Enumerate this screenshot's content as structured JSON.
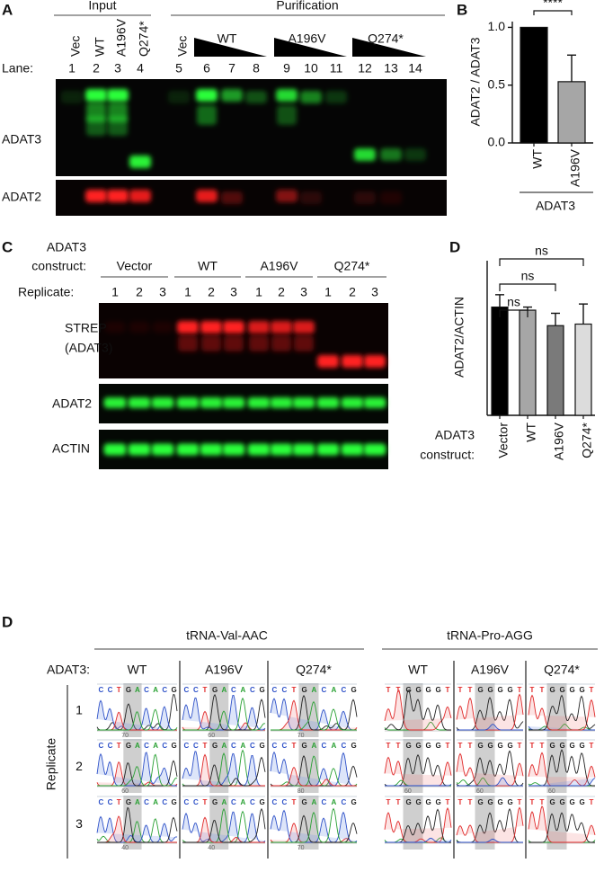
{
  "panel_a": {
    "letter": "A",
    "input": "Input",
    "purification": "Purification",
    "lane_names": [
      "Vec",
      "WT",
      "A196V",
      "Q274*",
      "Vec"
    ],
    "ramps": [
      "WT",
      "A196V",
      "Q274*"
    ],
    "lane_title": "Lane:",
    "lanes": [
      "1",
      "2",
      "3",
      "4",
      "5",
      "6",
      "7",
      "8",
      "9",
      "10",
      "11",
      "12",
      "13",
      "14"
    ],
    "blots": [
      "ADAT3",
      "ADAT2"
    ]
  },
  "panel_b": {
    "letter": "B"
  },
  "panel_c": {
    "letter": "C",
    "construct_title": [
      "ADAT3",
      "construct:"
    ],
    "groups": [
      "Vector",
      "WT",
      "A196V",
      "Q274*"
    ],
    "replicate_title": "Replicate:",
    "replicates": [
      "1",
      "2",
      "3"
    ],
    "blots": [
      [
        "STREP",
        "(ADAT3)"
      ],
      [
        "ADAT2"
      ],
      [
        "ACTIN"
      ]
    ]
  },
  "panel_d_chart": {
    "letter": "D"
  },
  "panel_d": {
    "letter": "D",
    "construct_title": "ADAT3:",
    "constructs": [
      "WT",
      "A196V",
      "Q274*"
    ],
    "replicate_title": "Replicate",
    "replicates": [
      "1",
      "2",
      "3"
    ],
    "rna": [
      {
        "name": "tRNA-Val-AAC",
        "rows": [
          [
            {
              "sequence": "CCTGACACG",
              "tick": "70"
            },
            {
              "sequence": "CCTGACACG",
              "tick": "60"
            },
            {
              "sequence": "CCTGACACG",
              "tick": "70"
            }
          ],
          [
            {
              "sequence": "CCTGACACG",
              "tick": "60"
            },
            {
              "sequence": "CCTGACACG"
            },
            {
              "sequence": "CCTGACACG",
              "tick": "80"
            }
          ],
          [
            {
              "sequence": "CCTGACACG",
              "tick": "40"
            },
            {
              "sequence": "CCTGACACG",
              "tick": "40"
            },
            {
              "sequence": "CCTGACACG",
              "tick": "70"
            }
          ]
        ]
      },
      {
        "name": "tRNA-Pro-AGG",
        "rows": [
          [
            {
              "sequence": "TTGGGGT"
            },
            {
              "sequence": "TTGGGGT"
            },
            {
              "sequence": "TTGGGGT"
            }
          ],
          [
            {
              "sequence": "TTGGGGT",
              "tick": "60"
            },
            {
              "sequence": "TTGGGGT",
              "tick": "60"
            },
            {
              "sequence": "TTGGGGT",
              "tick": "60"
            }
          ],
          [
            {
              "sequence": "TTGGGGT"
            },
            {
              "sequence": "TTGGGGT"
            },
            {
              "sequence": "TTGGGGT"
            }
          ]
        ]
      }
    ]
  },
  "chart_data": [
    {
      "type": "bar",
      "ylabel": "ADAT2 / ADAT3",
      "categories": [
        "WT",
        "A196V"
      ],
      "values": [
        1.0,
        0.53
      ],
      "errors": [
        null,
        0.23
      ],
      "colors": [
        "#000000",
        "#a6a6a6"
      ],
      "ylim": [
        0,
        1.05
      ],
      "yticks": [
        {
          "value": 0,
          "label": "0.0"
        },
        0.5,
        {
          "value": 1,
          "label": "1.0"
        }
      ],
      "group_label": [
        "ADAT3"
      ],
      "comparisons": [
        "****"
      ]
    },
    {
      "type": "bar",
      "ylabel": "ADAT2/ACTIN",
      "categories": [
        "Vector",
        "WT",
        "A196V",
        "Q274*"
      ],
      "values": [
        0.7,
        0.68,
        0.58,
        0.59
      ],
      "errors": [
        0.08,
        0.02,
        0.08,
        0.13
      ],
      "colors": [
        "#000000",
        "#a6a6a6",
        "#7a7a7a",
        "#dcdcdc"
      ],
      "ylim": [
        0,
        1
      ],
      "group_label": [
        "ADAT3",
        "construct:"
      ],
      "comparisons": [
        "ns",
        "ns",
        "ns"
      ]
    }
  ]
}
